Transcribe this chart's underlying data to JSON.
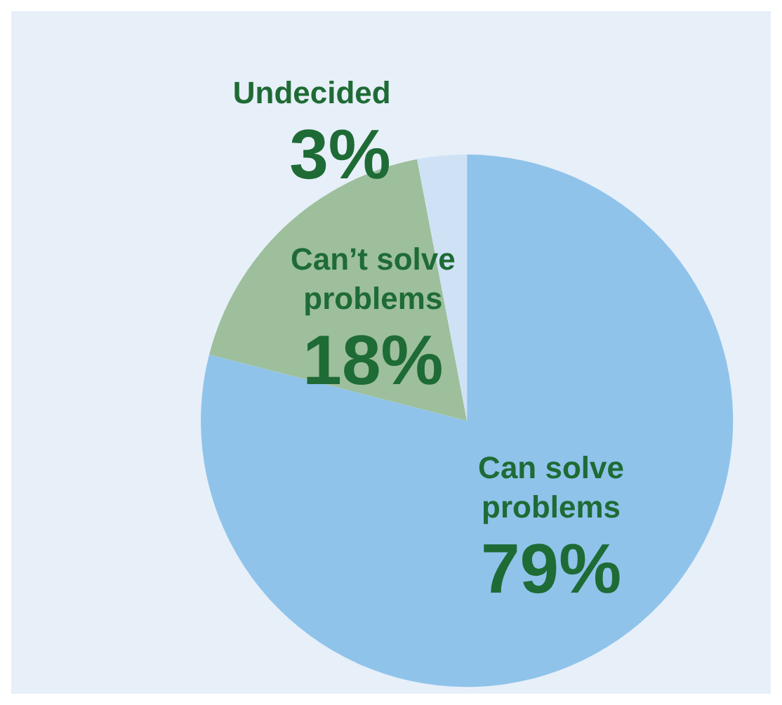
{
  "chart_data": {
    "type": "pie",
    "categories": [
      "Can solve problems",
      "Can’t solve problems",
      "Undecided"
    ],
    "values": [
      79,
      18,
      3
    ],
    "colors": [
      "#8fc3ea",
      "#9dbf9c",
      "#cfe2f5"
    ],
    "value_labels": [
      "79%",
      "18%",
      "3%"
    ]
  }
}
